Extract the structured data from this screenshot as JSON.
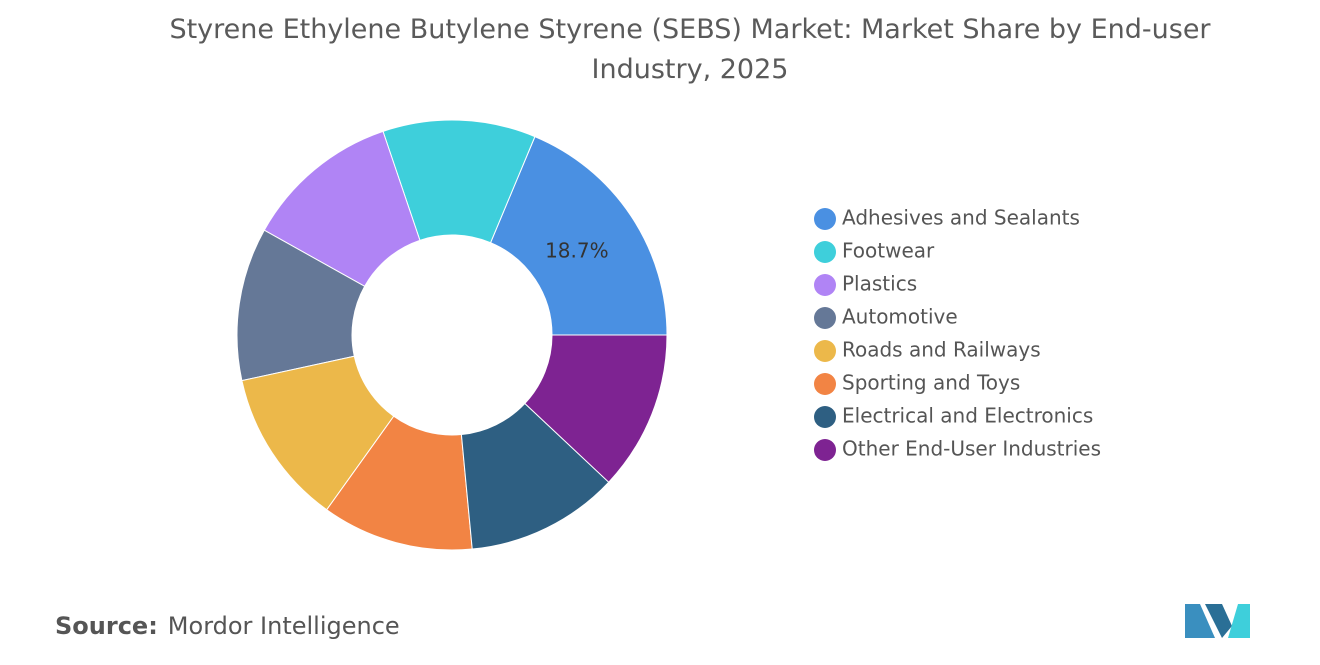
{
  "chart_data": {
    "type": "donut",
    "title": "Styrene Ethylene Butylene Styrene (SEBS) Market: Market Share by End-user Industry, 2025",
    "categories": [
      "Adhesives and Sealants",
      "Footwear",
      "Plastics",
      "Automotive",
      "Roads and Railways",
      "Sporting and Toys",
      "Electrical and Electronics",
      "Other End-User Industries"
    ],
    "values": [
      18.7,
      11.5,
      11.7,
      11.5,
      11.7,
      11.4,
      11.5,
      12.0
    ],
    "value_labels": [
      "18.7%",
      null,
      null,
      null,
      null,
      null,
      null,
      null
    ],
    "colors": [
      "#4a90e2",
      "#3ecfdb",
      "#b084f5",
      "#657897",
      "#ecb84a",
      "#f28444",
      "#2e5f82",
      "#7e2392"
    ],
    "legend": "right"
  },
  "source_label": "Source:",
  "source": "Mordor Intelligence"
}
